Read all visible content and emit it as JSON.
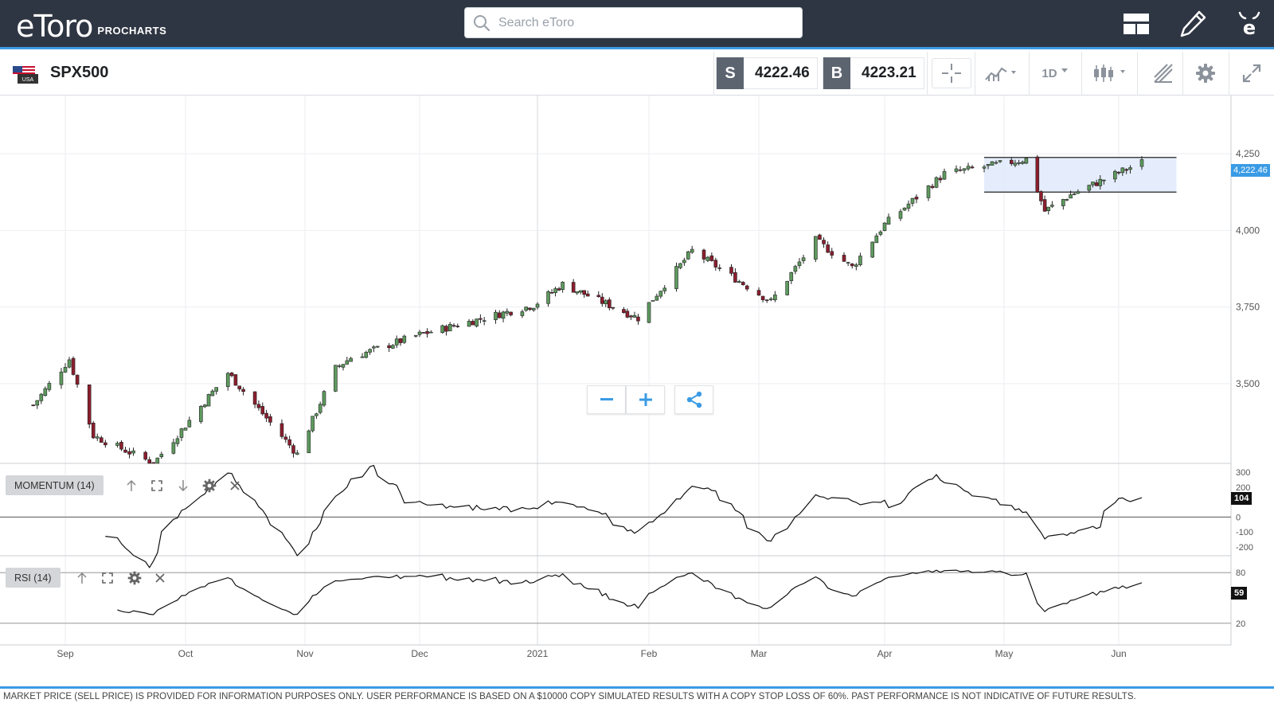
{
  "app": {
    "brand": "eToro",
    "product": "PROCHARTS",
    "search_placeholder": "Search eToro"
  },
  "instrument": {
    "symbol": "SPX500",
    "flag_label": "USA",
    "sell_label": "S",
    "sell_price": "4222.46",
    "buy_label": "B",
    "buy_price": "4223.21",
    "timeframe": "1D"
  },
  "icons": {
    "layout": "layout-icon",
    "edit": "pencil-icon",
    "profile": "etoro-avatar-icon",
    "crosshair": "crosshair-icon",
    "indicators": "indicators-icon",
    "chart_type": "candlestick-icon",
    "drawing": "drawing-tools-icon",
    "settings": "gear-icon",
    "fullscreen": "expand-icon"
  },
  "colors": {
    "topbar": "#2f3643",
    "accent": "#3a9be5",
    "bull": "#5e9a5e",
    "bear": "#8b1e2e",
    "selection_fill": "#dfe8fb"
  },
  "chart_data": {
    "type": "candlestick",
    "instrument": "SPX500",
    "timeframe": "1D",
    "x_ticks": [
      "Sep",
      "Oct",
      "Nov",
      "Dec",
      "2021",
      "Feb",
      "Mar",
      "Apr",
      "May",
      "Jun"
    ],
    "y_ticks": [
      "4,250",
      "4,000",
      "3,750",
      "3,500"
    ],
    "ylim": [
      3240,
      4440
    ],
    "last_price_label": "4,222.46",
    "approx_close_path": [
      {
        "date": "2020-08-24",
        "close": 3430
      },
      {
        "date": "2020-09-02",
        "close": 3580
      },
      {
        "date": "2020-09-08",
        "close": 3330
      },
      {
        "date": "2020-09-23",
        "close": 3240
      },
      {
        "date": "2020-10-12",
        "close": 3535
      },
      {
        "date": "2020-10-30",
        "close": 3270
      },
      {
        "date": "2020-11-09",
        "close": 3550
      },
      {
        "date": "2020-11-13",
        "close": 3585
      },
      {
        "date": "2020-12-01",
        "close": 3660
      },
      {
        "date": "2020-12-31",
        "close": 3756
      },
      {
        "date": "2021-01-08",
        "close": 3824
      },
      {
        "date": "2021-01-29",
        "close": 3714
      },
      {
        "date": "2021-02-12",
        "close": 3934
      },
      {
        "date": "2021-03-04",
        "close": 3768
      },
      {
        "date": "2021-03-15",
        "close": 3968
      },
      {
        "date": "2021-03-24",
        "close": 3880
      },
      {
        "date": "2021-04-01",
        "close": 4020
      },
      {
        "date": "2021-04-16",
        "close": 4185
      },
      {
        "date": "2021-05-07",
        "close": 4232
      },
      {
        "date": "2021-05-12",
        "close": 4063
      },
      {
        "date": "2021-05-19",
        "close": 4116
      },
      {
        "date": "2021-06-07",
        "close": 4222
      }
    ],
    "range_box": {
      "from": "2021-04-26",
      "to": "2021-06-16",
      "high": 4238,
      "low": 4125
    },
    "momentum": {
      "label": "MOMENTUM (14)",
      "y_ticks": [
        "300",
        "200",
        "0",
        "-100",
        "-200"
      ],
      "last_value": "104"
    },
    "rsi": {
      "label": "RSI (14)",
      "y_ticks": [
        "80",
        "20"
      ],
      "last_value": "59"
    }
  },
  "disclaimer": "MARKET PRICE (SELL PRICE) IS PROVIDED FOR INFORMATION PURPOSES ONLY. USER PERFORMANCE IS BASED ON A $10000 COPY SIMULATED RESULTS WITH A COPY STOP LOSS OF 60%. PAST PERFORMANCE IS NOT INDICATIVE OF FUTURE RESULTS."
}
